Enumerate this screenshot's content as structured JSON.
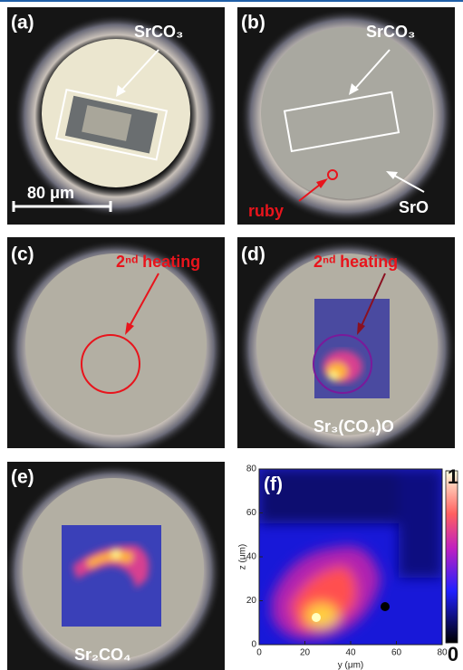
{
  "panels": [
    {
      "label": "(a)",
      "annotations": [
        "SrCO₃",
        "80 μm"
      ]
    },
    {
      "label": "(b)",
      "annotations": [
        "SrCO₃",
        "ruby",
        "SrO"
      ]
    },
    {
      "label": "(c)",
      "annotations": [
        "2ⁿᵈ heating"
      ]
    },
    {
      "label": "(d)",
      "annotations": [
        "2ⁿᵈ heating",
        "Sr₃(CO₄)O"
      ]
    },
    {
      "label": "(e)",
      "annotations": [
        "Sr₂CO₄"
      ]
    }
  ],
  "chart_data": {
    "type": "heatmap",
    "label": "(f)",
    "xlabel": "y (μm)",
    "ylabel": "z (μm)",
    "xlim": [
      0,
      80
    ],
    "ylim": [
      0,
      80
    ],
    "xticks": [
      0,
      20,
      40,
      60,
      80
    ],
    "yticks": [
      0,
      20,
      40,
      60,
      80
    ],
    "colorbar": {
      "lim": [
        0,
        1
      ],
      "ticks": [
        0,
        1
      ]
    }
  }
}
